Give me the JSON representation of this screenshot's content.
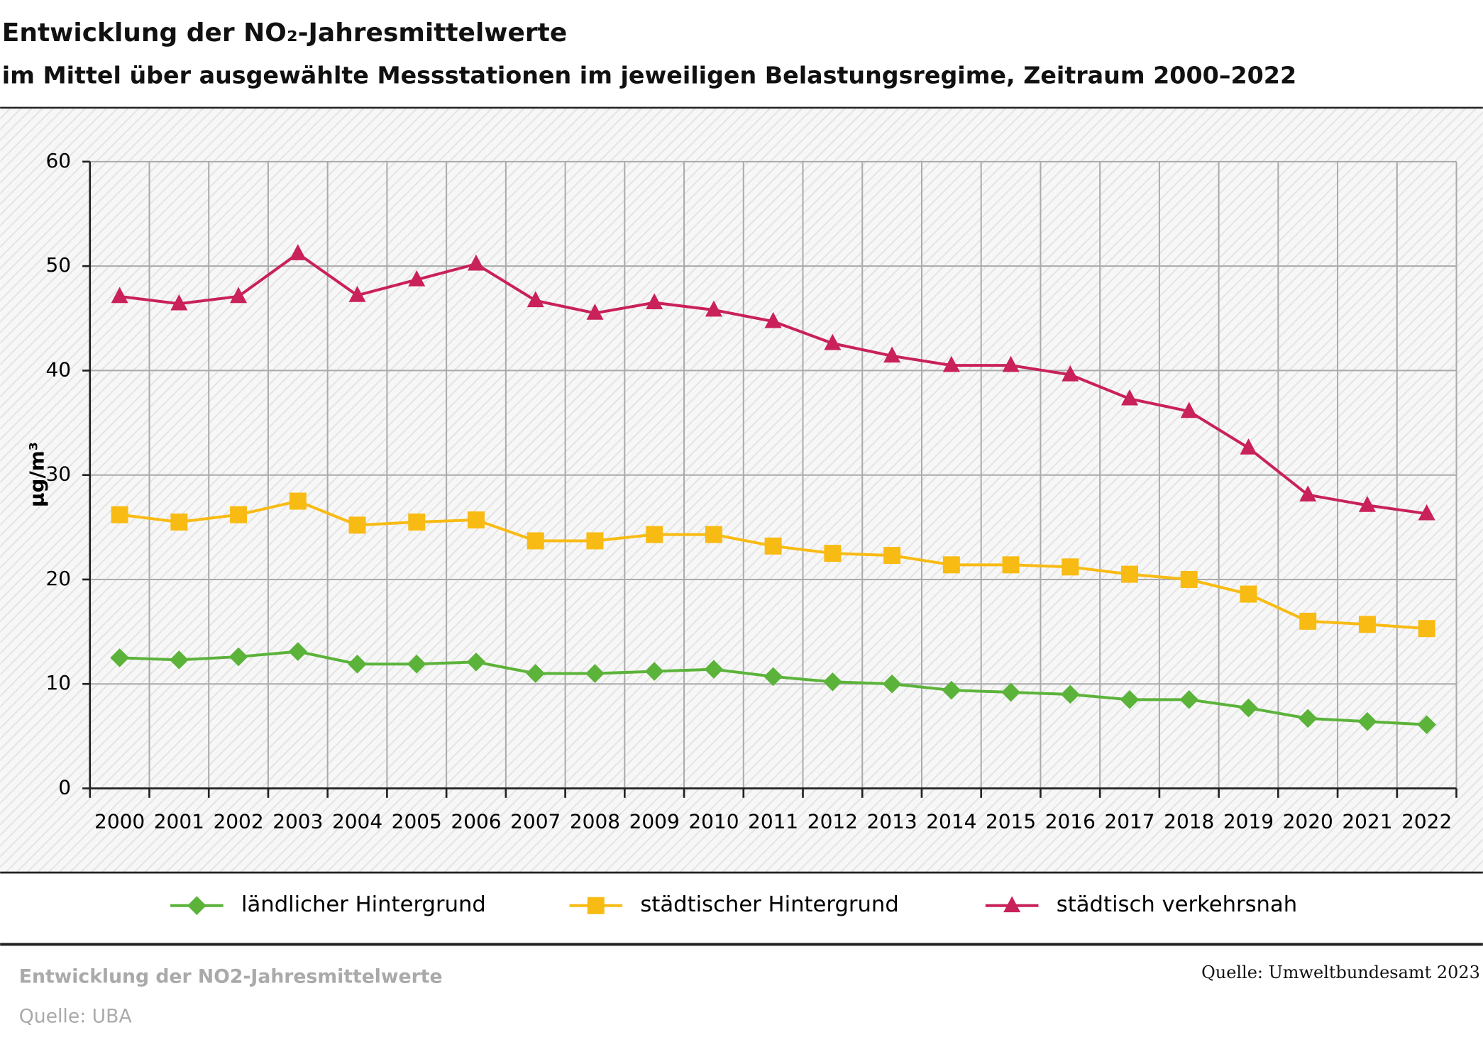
{
  "chart_data": {
    "type": "line",
    "title": "Entwicklung der NO₂-Jahresmittelwerte",
    "subtitle": "im Mittel über ausgewählte Messstationen im jeweiligen Belastungsregime, Zeitraum 2000–2022",
    "y_label": "µg/m³",
    "categories": [
      "2000",
      "2001",
      "2002",
      "2003",
      "2004",
      "2005",
      "2006",
      "2007",
      "2008",
      "2009",
      "2010",
      "2011",
      "2012",
      "2013",
      "2014",
      "2015",
      "2016",
      "2017",
      "2018",
      "2019",
      "2020",
      "2021",
      "2022"
    ],
    "series": [
      {
        "name": "ländlicher Hintergrund",
        "color": "#5bb33a",
        "marker": "diamond",
        "values": [
          12.5,
          12.3,
          12.6,
          13.1,
          11.9,
          11.9,
          12.1,
          11.0,
          11.0,
          11.2,
          11.4,
          10.7,
          10.2,
          10.0,
          9.4,
          9.2,
          9.0,
          8.5,
          8.5,
          7.7,
          6.7,
          6.4,
          6.1
        ]
      },
      {
        "name": "städtischer Hintergrund",
        "color": "#f8bb13",
        "marker": "square",
        "values": [
          26.2,
          25.5,
          26.2,
          27.5,
          25.2,
          25.5,
          25.7,
          23.7,
          23.7,
          24.3,
          24.3,
          23.2,
          22.5,
          22.3,
          21.4,
          21.4,
          21.2,
          20.5,
          20.0,
          18.6,
          16.0,
          15.7,
          15.3
        ]
      },
      {
        "name": "städtisch verkehrsnah",
        "color": "#c9215a",
        "marker": "triangle",
        "values": [
          47.1,
          46.4,
          47.1,
          51.2,
          47.2,
          48.7,
          50.2,
          46.7,
          45.5,
          46.5,
          45.8,
          44.7,
          42.6,
          41.4,
          40.5,
          40.5,
          39.6,
          37.3,
          36.1,
          32.6,
          28.1,
          27.1,
          26.3
        ]
      }
    ],
    "ylim": [
      0,
      60
    ],
    "yticks": [
      0,
      10,
      20,
      30,
      40,
      50,
      60
    ],
    "grid": true
  },
  "footer": {
    "caption": "Entwicklung der NO2-Jahresmittelwerte",
    "source": "Quelle: UBA",
    "credit": "Quelle: Umweltbundesamt 2023"
  }
}
